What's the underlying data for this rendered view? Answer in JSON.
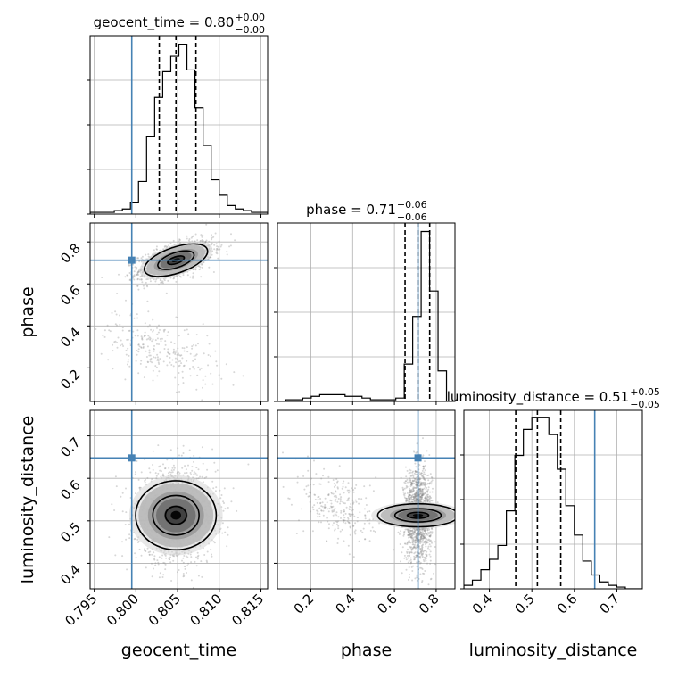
{
  "chart_data": {
    "type": "corner",
    "parameters": [
      {
        "key": "geocent_time",
        "label": "geocent_time",
        "title_main": "geocent_time = 0.80",
        "title_up": "+0.00",
        "title_down": "−0.00",
        "range": [
          0.7945,
          0.8158
        ],
        "ticks": [
          0.795,
          0.8,
          0.805,
          0.81,
          0.815
        ],
        "tick_labels": [
          "0.795",
          "0.800",
          "0.805",
          "0.810",
          "0.815"
        ],
        "truth": 0.7995,
        "quantiles": [
          0.8028,
          0.8048,
          0.8072
        ],
        "hist_bins": [
          0.7945,
          0.8158
        ],
        "hist_counts": [
          1,
          1,
          1,
          2,
          3,
          7,
          19,
          45,
          68,
          83,
          92,
          99,
          84,
          62,
          40,
          20,
          11,
          5,
          3,
          2,
          1,
          1
        ],
        "hist_ymax": 104
      },
      {
        "key": "phase",
        "label": "phase",
        "title_main": "phase = 0.71",
        "title_up": "+0.06",
        "title_down": "−0.06",
        "range": [
          0.04,
          0.89
        ],
        "ticks": [
          0.2,
          0.4,
          0.6,
          0.8
        ],
        "tick_labels": [
          "0.2",
          "0.4",
          "0.6",
          "0.8"
        ],
        "truth": 0.713,
        "quantiles": [
          0.651,
          0.713,
          0.769
        ],
        "hist_bins": [
          0.04,
          0.89
        ],
        "hist_counts": [
          0,
          1,
          1,
          2,
          3,
          4,
          4,
          4,
          3,
          3,
          2,
          1,
          1,
          1,
          2,
          22,
          50,
          100,
          65,
          18,
          0
        ],
        "hist_ymax": 105
      },
      {
        "key": "luminosity_distance",
        "label": "luminosity_distance",
        "title_main": "luminosity_distance = 0.51",
        "title_up": "+0.05",
        "title_down": "−0.05",
        "range": [
          0.34,
          0.76
        ],
        "ticks": [
          0.4,
          0.5,
          0.6,
          0.7
        ],
        "tick_labels": [
          "0.4",
          "0.5",
          "0.6",
          "0.7"
        ],
        "truth": 0.648,
        "quantiles": [
          0.462,
          0.513,
          0.568
        ],
        "hist_bins": [
          0.34,
          0.76
        ],
        "hist_counts": [
          2,
          5,
          11,
          17,
          25,
          45,
          77,
          92,
          99,
          99,
          89,
          69,
          48,
          31,
          16,
          8,
          4,
          2,
          1,
          0,
          0
        ],
        "hist_ymax": 103
      }
    ],
    "blobs": [
      {
        "row": 1,
        "col": 0,
        "cx": 0.8048,
        "cy": 0.713,
        "sx": 0.0022,
        "sy": 0.045,
        "rho": 0.55,
        "n": 1500
      },
      {
        "row": 1,
        "col": 0,
        "cx": 0.8028,
        "cy": 0.29,
        "sx": 0.0035,
        "sy": 0.085,
        "rho": -0.5,
        "n": 260
      },
      {
        "row": 2,
        "col": 0,
        "cx": 0.8048,
        "cy": 0.513,
        "sx": 0.0024,
        "sy": 0.055,
        "rho": 0.0,
        "n": 1500
      },
      {
        "row": 2,
        "col": 1,
        "cx": 0.713,
        "cy": 0.513,
        "sx": 0.032,
        "sy": 0.055,
        "rho": 0.0,
        "n": 1500
      },
      {
        "row": 2,
        "col": 1,
        "cx": 0.34,
        "cy": 0.53,
        "sx": 0.085,
        "sy": 0.045,
        "rho": -0.25,
        "n": 260
      }
    ],
    "contour_levels": [
      0.39,
      0.86,
      1.5
    ],
    "truth_color": "#4682b4",
    "line_color": "#000000",
    "point_color": "#8c8c8c",
    "grid": true
  }
}
